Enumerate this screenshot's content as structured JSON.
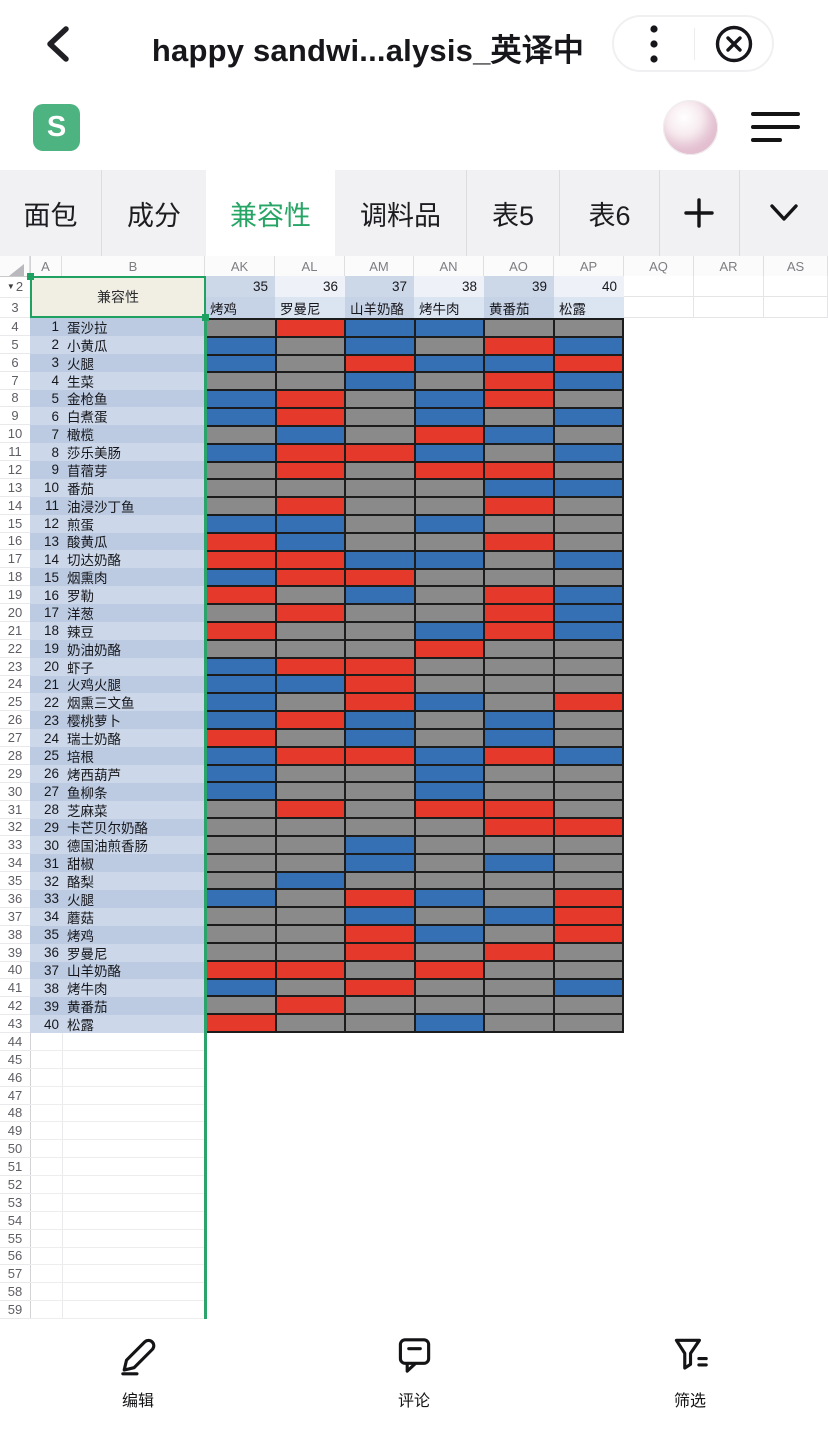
{
  "nav": {
    "title": "happy sandwi...alysis_英译中"
  },
  "logo_letter": "S",
  "tabs": {
    "items": [
      {
        "label": "面包",
        "active": false
      },
      {
        "label": "成分",
        "active": false
      },
      {
        "label": "兼容性",
        "active": true
      },
      {
        "label": "调料品",
        "active": false
      },
      {
        "label": "表5",
        "active": false
      },
      {
        "label": "表6",
        "active": false
      }
    ]
  },
  "sheet": {
    "column_headers": [
      "A",
      "B",
      "AK",
      "AL",
      "AM",
      "AN",
      "AO",
      "AP",
      "AQ",
      "AR",
      "AS"
    ],
    "frozen_row_headers": [
      "2",
      "3"
    ],
    "row2_collapse_marker": "▼",
    "selection_text": "兼容性",
    "column_numbers": [
      35,
      36,
      37,
      38,
      39,
      40
    ],
    "column_names": [
      "烤鸡",
      "罗曼尼",
      "山羊奶酪",
      "烤牛肉",
      "黄番茄",
      "松露"
    ],
    "legend": {
      "G": "gray",
      "R": "red",
      "B": "blue"
    },
    "colors": {
      "gray": "#8a8a8a",
      "red": "#e5392b",
      "blue": "#3570b4"
    },
    "rows": [
      {
        "row": 4,
        "num": 1,
        "name": "蛋沙拉",
        "cells": "GRBBGG"
      },
      {
        "row": 5,
        "num": 2,
        "name": "小黄瓜",
        "cells": "BGBGRB"
      },
      {
        "row": 6,
        "num": 3,
        "name": "火腿",
        "cells": "BGRBBR"
      },
      {
        "row": 7,
        "num": 4,
        "name": "生菜",
        "cells": "GGBGRB"
      },
      {
        "row": 8,
        "num": 5,
        "name": "金枪鱼",
        "cells": "BRGBRG"
      },
      {
        "row": 9,
        "num": 6,
        "name": "白煮蛋",
        "cells": "BRGBGB"
      },
      {
        "row": 10,
        "num": 7,
        "name": "橄榄",
        "cells": "GBGRBG"
      },
      {
        "row": 11,
        "num": 8,
        "name": "莎乐美肠",
        "cells": "BRRBGB"
      },
      {
        "row": 12,
        "num": 9,
        "name": "苜蓿芽",
        "cells": "GRGRRG"
      },
      {
        "row": 13,
        "num": 10,
        "name": "番茄",
        "cells": "GGGGBB"
      },
      {
        "row": 14,
        "num": 11,
        "name": "油浸沙丁鱼",
        "cells": "GRGGRG"
      },
      {
        "row": 15,
        "num": 12,
        "name": "煎蛋",
        "cells": "BBGBGG"
      },
      {
        "row": 16,
        "num": 13,
        "name": "酸黄瓜",
        "cells": "RBGGRG"
      },
      {
        "row": 17,
        "num": 14,
        "name": "切达奶酪",
        "cells": "RRBBGB"
      },
      {
        "row": 18,
        "num": 15,
        "name": "烟熏肉",
        "cells": "BRRGGG"
      },
      {
        "row": 19,
        "num": 16,
        "name": "罗勒",
        "cells": "RGBGRB"
      },
      {
        "row": 20,
        "num": 17,
        "name": "洋葱",
        "cells": "GRGGRB"
      },
      {
        "row": 21,
        "num": 18,
        "name": "辣豆",
        "cells": "RGGBRB"
      },
      {
        "row": 22,
        "num": 19,
        "name": "奶油奶酪",
        "cells": "GGGRGG"
      },
      {
        "row": 23,
        "num": 20,
        "name": "虾子",
        "cells": "BRRGGG"
      },
      {
        "row": 24,
        "num": 21,
        "name": "火鸡火腿",
        "cells": "BBRGGG"
      },
      {
        "row": 25,
        "num": 22,
        "name": "烟熏三文鱼",
        "cells": "BGRBGR"
      },
      {
        "row": 26,
        "num": 23,
        "name": "樱桃萝卜",
        "cells": "BRBGBG"
      },
      {
        "row": 27,
        "num": 24,
        "name": "瑞士奶酪",
        "cells": "RGBGBG"
      },
      {
        "row": 28,
        "num": 25,
        "name": "培根",
        "cells": "BRRBRB"
      },
      {
        "row": 29,
        "num": 26,
        "name": "烤西葫芦",
        "cells": "BGGBGG"
      },
      {
        "row": 30,
        "num": 27,
        "name": "鱼柳条",
        "cells": "BGGBGG"
      },
      {
        "row": 31,
        "num": 28,
        "name": "芝麻菜",
        "cells": "GRGRRG"
      },
      {
        "row": 32,
        "num": 29,
        "name": "卡芒贝尔奶酪",
        "cells": "GGGGRR"
      },
      {
        "row": 33,
        "num": 30,
        "name": "德国油煎香肠",
        "cells": "GGBGGG"
      },
      {
        "row": 34,
        "num": 31,
        "name": "甜椒",
        "cells": "GGBGBG"
      },
      {
        "row": 35,
        "num": 32,
        "name": "酪梨",
        "cells": "GBGGGG"
      },
      {
        "row": 36,
        "num": 33,
        "name": "火腿",
        "cells": "BGRBGR"
      },
      {
        "row": 37,
        "num": 34,
        "name": "蘑菇",
        "cells": "GGBGBR"
      },
      {
        "row": 38,
        "num": 35,
        "name": "烤鸡",
        "cells": "GGRBGR"
      },
      {
        "row": 39,
        "num": 36,
        "name": "罗曼尼",
        "cells": "GGRGRG"
      },
      {
        "row": 40,
        "num": 37,
        "name": "山羊奶酪",
        "cells": "RRGRGG"
      },
      {
        "row": 41,
        "num": 38,
        "name": "烤牛肉",
        "cells": "BGRGGB"
      },
      {
        "row": 42,
        "num": 39,
        "name": "黄番茄",
        "cells": "GRGGGG"
      },
      {
        "row": 43,
        "num": 40,
        "name": "松露",
        "cells": "RGGBGG"
      }
    ],
    "empty_rows": [
      44,
      45,
      46,
      47,
      48,
      49,
      50,
      51,
      52,
      53,
      54,
      55,
      56,
      57,
      58,
      59
    ]
  },
  "toolbar": {
    "items": [
      {
        "label": "编辑",
        "icon": "edit-pencil-icon"
      },
      {
        "label": "评论",
        "icon": "comment-icon"
      },
      {
        "label": "筛选",
        "icon": "filter-funnel-icon"
      }
    ]
  }
}
